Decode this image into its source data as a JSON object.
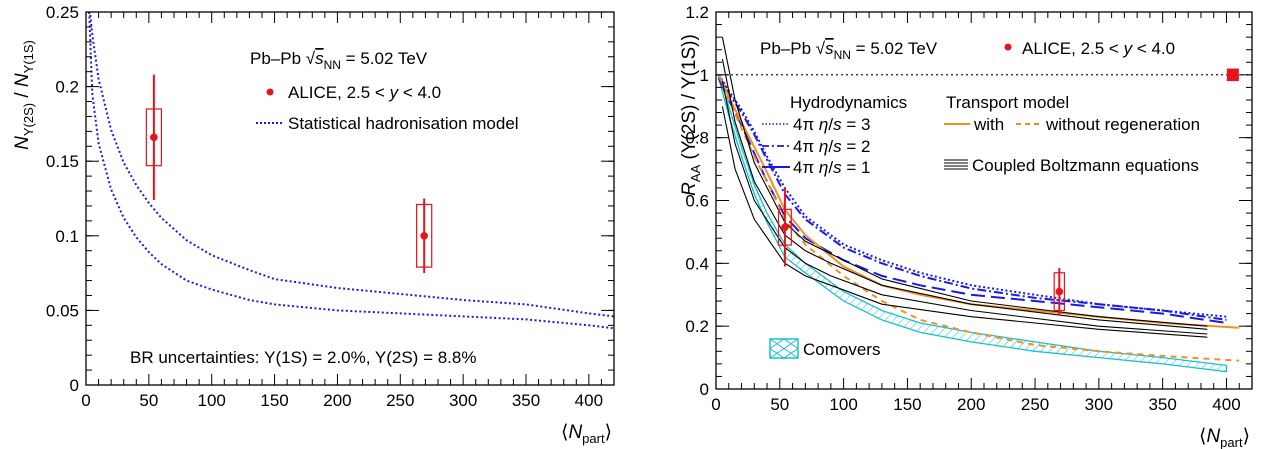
{
  "chart_data": [
    {
      "type": "scatter",
      "xlabel": "⟨N_part⟩",
      "ylabel": "N_Υ(2S) / N_Υ(1S)",
      "xlim": [
        0,
        420
      ],
      "ylim": [
        0,
        0.25
      ],
      "xticks": [
        "0",
        "50",
        "100",
        "150",
        "200",
        "250",
        "300",
        "350",
        "400"
      ],
      "yticks": [
        "0",
        "0.05",
        "0.1",
        "0.15",
        "0.2",
        "0.25"
      ],
      "grid": false,
      "legend_title": "Pb–Pb √sNN = 5.02 TeV",
      "legend": {
        "data": "ALICE, 2.5 < y < 4.0",
        "model": "Statistical hadronisation model"
      },
      "annotation": "BR uncertainties: Υ(1S) = 2.0%, Υ(2S) = 8.8%",
      "colors": {
        "data": "#e8131b",
        "model": "#1a1ae6"
      },
      "data_points": [
        {
          "x": 54,
          "y": 0.166,
          "stat": 0.042,
          "syst": 0.019,
          "xsys": 6
        },
        {
          "x": 269,
          "y": 0.1,
          "stat": 0.025,
          "syst": 0.021,
          "xsys": 6
        }
      ],
      "series": [
        {
          "style": "dotted",
          "x": [
            2,
            5,
            10,
            20,
            30,
            40,
            50,
            60,
            80,
            100,
            130,
            150,
            200,
            250,
            300,
            350,
            400,
            420
          ],
          "y": [
            0.26,
            0.235,
            0.205,
            0.171,
            0.149,
            0.134,
            0.122,
            0.112,
            0.097,
            0.087,
            0.077,
            0.071,
            0.065,
            0.061,
            0.057,
            0.054,
            0.048,
            0.046
          ]
        },
        {
          "style": "dotted",
          "x": [
            2,
            5,
            10,
            20,
            30,
            40,
            50,
            60,
            80,
            100,
            130,
            150,
            200,
            250,
            300,
            350,
            400,
            420
          ],
          "y": [
            0.262,
            0.195,
            0.162,
            0.131,
            0.112,
            0.099,
            0.089,
            0.081,
            0.07,
            0.064,
            0.057,
            0.054,
            0.05,
            0.048,
            0.046,
            0.044,
            0.04,
            0.038
          ]
        }
      ]
    },
    {
      "type": "line",
      "xlabel": "⟨N_part⟩",
      "ylabel": "R_AA (Υ(2S) / Υ(1S))",
      "xlim": [
        0,
        420
      ],
      "ylim": [
        0,
        1.2
      ],
      "xticks": [
        "0",
        "50",
        "100",
        "150",
        "200",
        "250",
        "300",
        "350",
        "400"
      ],
      "yticks": [
        "0",
        "0.2",
        "0.4",
        "0.6",
        "0.8",
        "1",
        "1.2"
      ],
      "grid": false,
      "reference_line": 1,
      "legend_title": "Pb–Pb √sNN = 5.02 TeV",
      "legend": {
        "data": "ALICE, 2.5 < y < 4.0",
        "hydro_header": "Hydrodynamics",
        "hydro3": "4π η/s = 3",
        "hydro2": "4π η/s = 2",
        "hydro1": "4π η/s = 1",
        "transport_header": "Transport model",
        "transport_with": "with",
        "transport_without": "without regeneration",
        "boltzmann": "Coupled Boltzmann equations",
        "comovers": "Comovers"
      },
      "colors": {
        "data": "#e8131b",
        "hydro": "#1a1ae6",
        "transport": "#f5901e",
        "boltzmann": "#000000",
        "comovers": "#18c0d0"
      },
      "data_points": [
        {
          "x": 54,
          "y": 0.515,
          "stat": 0.125,
          "syst": 0.057,
          "xsys": 5
        },
        {
          "x": 269,
          "y": 0.31,
          "stat": 0.075,
          "syst": 0.06,
          "xsys": 4
        }
      ],
      "global_uncertainty": {
        "x": 405,
        "y": 1.0,
        "half_height": 0.02
      },
      "series": [
        {
          "name": "hydro3",
          "style": "dotted",
          "color": "hydro",
          "x": [
            2,
            10,
            20,
            30,
            40,
            54,
            70,
            100,
            130,
            160,
            200,
            250,
            300,
            350,
            400
          ],
          "y": [
            1.0,
            0.95,
            0.89,
            0.82,
            0.74,
            0.64,
            0.55,
            0.46,
            0.41,
            0.37,
            0.33,
            0.3,
            0.27,
            0.25,
            0.23
          ]
        },
        {
          "name": "hydro2",
          "style": "dashdot",
          "color": "hydro",
          "x": [
            2,
            10,
            20,
            30,
            40,
            54,
            70,
            100,
            130,
            160,
            200,
            250,
            300,
            350,
            400
          ],
          "y": [
            1.0,
            0.94,
            0.88,
            0.81,
            0.73,
            0.62,
            0.54,
            0.45,
            0.4,
            0.36,
            0.32,
            0.29,
            0.27,
            0.25,
            0.22
          ]
        },
        {
          "name": "hydro1",
          "style": "longdash",
          "color": "hydro",
          "x": [
            2,
            10,
            20,
            30,
            40,
            54,
            70,
            100,
            130,
            160,
            200,
            250,
            300,
            350,
            400
          ],
          "y": [
            0.99,
            0.92,
            0.84,
            0.75,
            0.66,
            0.55,
            0.48,
            0.41,
            0.36,
            0.33,
            0.3,
            0.28,
            0.26,
            0.24,
            0.21
          ]
        },
        {
          "name": "transport_with",
          "style": "solid",
          "color": "transport",
          "x": [
            2,
            10,
            20,
            30,
            40,
            54,
            70,
            100,
            130,
            160,
            200,
            250,
            300,
            350,
            410
          ],
          "y": [
            1.0,
            0.93,
            0.85,
            0.77,
            0.69,
            0.57,
            0.49,
            0.39,
            0.33,
            0.3,
            0.27,
            0.25,
            0.23,
            0.21,
            0.195
          ]
        },
        {
          "name": "transport_without",
          "style": "dashed",
          "color": "transport",
          "x": [
            2,
            10,
            20,
            30,
            40,
            54,
            70,
            100,
            130,
            160,
            200,
            250,
            300,
            350,
            410
          ],
          "y": [
            1.0,
            0.92,
            0.83,
            0.74,
            0.66,
            0.54,
            0.46,
            0.36,
            0.28,
            0.22,
            0.18,
            0.14,
            0.12,
            0.105,
            0.09
          ]
        },
        {
          "name": "boltzmann_a",
          "style": "solid",
          "color": "boltzmann",
          "x": [
            5,
            15,
            30,
            54,
            70,
            90,
            130,
            200,
            300,
            385
          ],
          "y": [
            1.12,
            0.92,
            0.72,
            0.53,
            0.47,
            0.43,
            0.35,
            0.28,
            0.23,
            0.2
          ]
        },
        {
          "name": "boltzmann_b",
          "style": "solid",
          "color": "boltzmann",
          "x": [
            5,
            15,
            30,
            54,
            70,
            90,
            130,
            200,
            300,
            385
          ],
          "y": [
            1.05,
            0.85,
            0.66,
            0.49,
            0.44,
            0.4,
            0.33,
            0.27,
            0.22,
            0.19
          ]
        },
        {
          "name": "boltzmann_c",
          "style": "solid",
          "color": "boltzmann",
          "x": [
            5,
            15,
            30,
            54,
            70,
            90,
            130,
            200,
            300,
            385
          ],
          "y": [
            0.98,
            0.78,
            0.6,
            0.45,
            0.4,
            0.36,
            0.3,
            0.25,
            0.2,
            0.175
          ]
        },
        {
          "name": "boltzmann_d",
          "style": "solid",
          "color": "boltzmann",
          "x": [
            5,
            15,
            30,
            54,
            70,
            90,
            130,
            200,
            300,
            385
          ],
          "y": [
            0.9,
            0.7,
            0.54,
            0.4,
            0.36,
            0.33,
            0.27,
            0.23,
            0.19,
            0.165
          ]
        }
      ],
      "comovers_band": {
        "x": [
          2,
          10,
          20,
          30,
          40,
          54,
          70,
          100,
          130,
          160,
          200,
          250,
          300,
          350,
          400
        ],
        "upper": [
          1.0,
          0.9,
          0.77,
          0.65,
          0.56,
          0.46,
          0.4,
          0.31,
          0.25,
          0.21,
          0.18,
          0.15,
          0.12,
          0.1,
          0.075
        ],
        "lower": [
          0.99,
          0.87,
          0.74,
          0.62,
          0.53,
          0.42,
          0.37,
          0.28,
          0.22,
          0.18,
          0.15,
          0.12,
          0.1,
          0.08,
          0.055
        ]
      }
    }
  ]
}
